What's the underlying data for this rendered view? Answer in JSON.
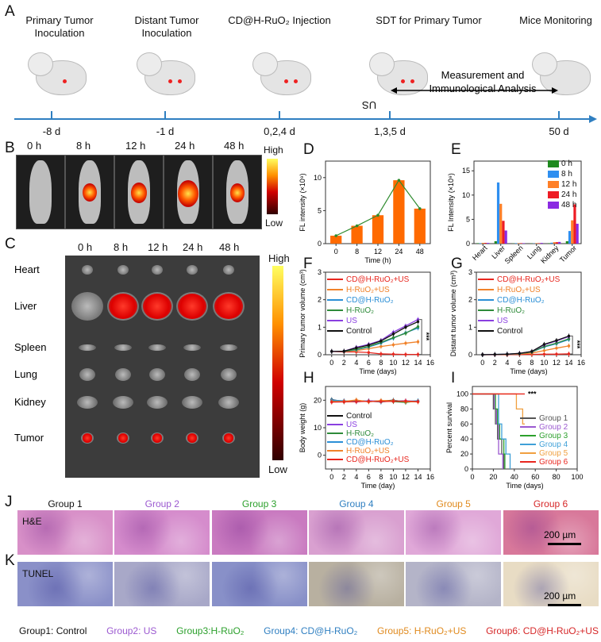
{
  "panels": {
    "A": "A",
    "B": "B",
    "C": "C",
    "D": "D",
    "E": "E",
    "F": "F",
    "G": "G",
    "H": "H",
    "I": "I",
    "J": "J",
    "K": "K"
  },
  "timeline": {
    "steps": [
      {
        "title": "Primary Tumor Inoculation",
        "date": "-8 d"
      },
      {
        "title": "Distant Tumor Inoculation",
        "date": "-1 d"
      },
      {
        "title": "CD@H-RuO₂ Injection",
        "date": "0,2,4 d"
      },
      {
        "title": "SDT for Primary Tumor",
        "date": "1,3,5 d"
      },
      {
        "title": "Mice Monitoring",
        "date": "50 d"
      }
    ],
    "measurement": "Measurement and Immunological Analysis",
    "us_label": "US",
    "colors": {
      "axis": "#2f7fc1",
      "tumor": "#e02020"
    }
  },
  "panel_b": {
    "times": [
      "0 h",
      "8 h",
      "12 h",
      "24 h",
      "48 h"
    ],
    "signal_level": [
      0,
      0.5,
      0.6,
      1.0,
      0.55
    ],
    "scale_high": "High",
    "scale_low": "Low"
  },
  "panel_c": {
    "times": [
      "0 h",
      "8 h",
      "12 h",
      "24 h",
      "48 h"
    ],
    "organs": [
      "Heart",
      "Liver",
      "Spleen",
      "Lung",
      "Kidney",
      "Tumor"
    ],
    "scale_high": "High",
    "scale_low": "Low"
  },
  "histology": {
    "groups": [
      "Group 1",
      "Group 2",
      "Group 3",
      "Group 4",
      "Group 5",
      "Group 6"
    ],
    "group_colors": [
      "#111111",
      "#9b59d0",
      "#2ca02c",
      "#2f7fc1",
      "#e08a1e",
      "#d62728"
    ],
    "he_label": "H&E",
    "tunel_label": "TUNEL",
    "scale_bar": "200 µm",
    "legend": [
      "Group1: Control",
      "Group2: US",
      "Group3:H-RuO₂",
      "Group4: CD@H-RuO₂",
      "Group5: H-RuO₂+US",
      "Group6: CD@H-RuO₂+US"
    ]
  },
  "chart_data": [
    {
      "id": "D",
      "type": "bar",
      "xlabel": "Time (h)",
      "ylabel": "FL intensity (×10⁹)",
      "categories": [
        "0",
        "8",
        "12",
        "24",
        "48"
      ],
      "values": [
        1.2,
        2.7,
        4.3,
        9.6,
        5.3
      ],
      "line_overlay": true,
      "ylim": [
        0,
        12.5
      ],
      "yticks": [
        0,
        5,
        10
      ],
      "colors": {
        "bar": "#ff6a00",
        "line": "#2e8b2e"
      }
    },
    {
      "id": "E",
      "type": "bar",
      "xlabel": "",
      "ylabel": "FL Intensity (×10⁹)",
      "categories": [
        "Heart",
        "Liver",
        "Spleen",
        "Lung",
        "Kidney",
        "Tumor"
      ],
      "ylim": [
        0,
        17
      ],
      "yticks": [
        0,
        5,
        10,
        15
      ],
      "legend": "top-right",
      "series": [
        {
          "name": "0 h",
          "color": "#1f8a1f",
          "values": [
            0.1,
            0.5,
            0.05,
            0.05,
            0.1,
            0.5
          ]
        },
        {
          "name": "8 h",
          "color": "#2f8ff0",
          "values": [
            0.1,
            12.6,
            0.1,
            0.05,
            0.2,
            2.6
          ]
        },
        {
          "name": "12 h",
          "color": "#ff7f27",
          "values": [
            0.15,
            8.2,
            0.1,
            0.1,
            0.3,
            4.8
          ]
        },
        {
          "name": "24 h",
          "color": "#ee1c24",
          "values": [
            0.15,
            4.7,
            0.1,
            0.1,
            0.3,
            8.1
          ]
        },
        {
          "name": "48 h",
          "color": "#8b2be2",
          "values": [
            0.15,
            2.7,
            0.1,
            0.15,
            0.35,
            4.1
          ]
        }
      ]
    },
    {
      "id": "F",
      "type": "line",
      "xlabel": "Time (days)",
      "ylabel": "Primary tumor volume (cm³)",
      "x": [
        0,
        2,
        4,
        6,
        8,
        10,
        12,
        14
      ],
      "xlim": [
        -1,
        16
      ],
      "xticks": [
        0,
        2,
        4,
        6,
        8,
        10,
        12,
        14,
        16
      ],
      "ylim": [
        0,
        3
      ],
      "yticks": [
        0,
        1,
        2,
        3
      ],
      "annotation": "***",
      "series": [
        {
          "name": "CD@H-RuO₂+US",
          "color": "#e8261e",
          "values": [
            0.12,
            0.1,
            0.1,
            0.08,
            0.03,
            0.02,
            0.01,
            0.01
          ]
        },
        {
          "name": "H-RuO₂+US",
          "color": "#f0822a",
          "values": [
            0.12,
            0.12,
            0.15,
            0.22,
            0.3,
            0.36,
            0.42,
            0.47
          ]
        },
        {
          "name": "CD@H-RuO₂",
          "color": "#2b8fd6",
          "values": [
            0.12,
            0.12,
            0.18,
            0.28,
            0.42,
            0.6,
            0.8,
            0.97
          ]
        },
        {
          "name": "H-RuO₂",
          "color": "#2e8b3a",
          "values": [
            0.12,
            0.12,
            0.2,
            0.3,
            0.45,
            0.62,
            0.78,
            1.02
          ]
        },
        {
          "name": "US",
          "color": "#8a3fe0",
          "values": [
            0.12,
            0.13,
            0.27,
            0.38,
            0.52,
            0.82,
            1.05,
            1.28
          ]
        },
        {
          "name": "Control",
          "color": "#111111",
          "values": [
            0.12,
            0.13,
            0.25,
            0.35,
            0.5,
            0.75,
            1.0,
            1.2
          ]
        }
      ]
    },
    {
      "id": "G",
      "type": "line",
      "xlabel": "Time (days)",
      "ylabel": "Distant tumor volume (cm³)",
      "x": [
        0,
        2,
        4,
        6,
        8,
        10,
        12,
        14
      ],
      "xlim": [
        -1,
        16
      ],
      "xticks": [
        0,
        2,
        4,
        6,
        8,
        10,
        12,
        14,
        16
      ],
      "ylim": [
        0,
        3
      ],
      "yticks": [
        0,
        1,
        2,
        3
      ],
      "annotation": "***",
      "series": [
        {
          "name": "CD@H-RuO₂+US",
          "color": "#e8261e",
          "values": [
            0,
            0,
            0,
            0.01,
            0.01,
            0.02,
            0.02,
            0.03
          ]
        },
        {
          "name": "H-RuO₂+US",
          "color": "#f0822a",
          "values": [
            0,
            0.01,
            0.01,
            0.03,
            0.06,
            0.15,
            0.24,
            0.32
          ]
        },
        {
          "name": "CD@H-RuO₂",
          "color": "#2b8fd6",
          "values": [
            0,
            0.01,
            0.02,
            0.04,
            0.1,
            0.28,
            0.4,
            0.55
          ]
        },
        {
          "name": "H-RuO₂",
          "color": "#2e8b3a",
          "values": [
            0,
            0.01,
            0.02,
            0.04,
            0.1,
            0.3,
            0.42,
            0.58
          ]
        },
        {
          "name": "US",
          "color": "#8a3fe0",
          "values": [
            0,
            0.01,
            0.02,
            0.05,
            0.12,
            0.36,
            0.5,
            0.66
          ]
        },
        {
          "name": "Control",
          "color": "#111111",
          "values": [
            0,
            0.01,
            0.02,
            0.05,
            0.12,
            0.38,
            0.52,
            0.68
          ]
        }
      ]
    },
    {
      "id": "H",
      "type": "line",
      "xlabel": "Time (day)",
      "ylabel": "Body weight (g)",
      "x": [
        0,
        2,
        4,
        6,
        8,
        10,
        12,
        14
      ],
      "xlim": [
        -1,
        16
      ],
      "xticks": [
        0,
        2,
        4,
        6,
        8,
        10,
        12,
        14,
        16
      ],
      "ylim": [
        -5,
        25
      ],
      "yticks": [
        0,
        10,
        20
      ],
      "series": [
        {
          "name": "Control",
          "color": "#111111",
          "values": [
            20.2,
            19.5,
            19.8,
            19.6,
            19.7,
            20.0,
            19.4,
            19.6
          ]
        },
        {
          "name": "US",
          "color": "#8a3fe0",
          "values": [
            19.6,
            19.7,
            19.4,
            19.8,
            19.6,
            19.7,
            19.8,
            19.5
          ]
        },
        {
          "name": "H-RuO₂",
          "color": "#2e8b3a",
          "values": [
            19.8,
            19.4,
            19.9,
            19.5,
            19.8,
            19.5,
            19.2,
            19.7
          ]
        },
        {
          "name": "CD@H-RuO₂",
          "color": "#2b8fd6",
          "values": [
            20.0,
            19.8,
            19.6,
            19.7,
            19.3,
            19.9,
            19.6,
            19.8
          ]
        },
        {
          "name": "H-RuO₂+US",
          "color": "#f0822a",
          "values": [
            19.5,
            19.6,
            20.1,
            19.4,
            19.9,
            19.8,
            19.5,
            19.4
          ]
        },
        {
          "name": "CD@H-RuO₂+US",
          "color": "#e8261e",
          "values": [
            19.3,
            19.4,
            19.5,
            19.6,
            19.5,
            19.6,
            19.7,
            19.5
          ]
        }
      ]
    },
    {
      "id": "I",
      "type": "line",
      "step": true,
      "xlabel": "Time (days)",
      "ylabel": "Percent survival",
      "xlim": [
        0,
        100
      ],
      "xticks": [
        0,
        20,
        40,
        60,
        80,
        100
      ],
      "ylim": [
        0,
        110
      ],
      "yticks": [
        0,
        20,
        40,
        60,
        80,
        100
      ],
      "annotation": "***",
      "series": [
        {
          "name": "Group 1",
          "color": "#555555",
          "points": [
            [
              0,
              100
            ],
            [
              20,
              100
            ],
            [
              20,
              80
            ],
            [
              22,
              80
            ],
            [
              22,
              60
            ],
            [
              24,
              60
            ],
            [
              24,
              40
            ],
            [
              28,
              40
            ],
            [
              28,
              20
            ],
            [
              30,
              20
            ],
            [
              30,
              0
            ]
          ]
        },
        {
          "name": "Group 2",
          "color": "#9b59d0",
          "points": [
            [
              0,
              100
            ],
            [
              21,
              100
            ],
            [
              21,
              80
            ],
            [
              23,
              80
            ],
            [
              23,
              60
            ],
            [
              25,
              60
            ],
            [
              25,
              20
            ],
            [
              29,
              20
            ],
            [
              29,
              0
            ]
          ]
        },
        {
          "name": "Group 3",
          "color": "#2ca02c",
          "points": [
            [
              0,
              100
            ],
            [
              22,
              100
            ],
            [
              22,
              80
            ],
            [
              24,
              80
            ],
            [
              24,
              60
            ],
            [
              26,
              60
            ],
            [
              26,
              40
            ],
            [
              30,
              40
            ],
            [
              30,
              20
            ],
            [
              31,
              20
            ],
            [
              31,
              0
            ]
          ]
        },
        {
          "name": "Group 4",
          "color": "#3fa0d8",
          "points": [
            [
              0,
              100
            ],
            [
              25,
              100
            ],
            [
              25,
              60
            ],
            [
              28,
              60
            ],
            [
              28,
              40
            ],
            [
              32,
              40
            ],
            [
              32,
              20
            ],
            [
              36,
              20
            ],
            [
              36,
              0
            ]
          ]
        },
        {
          "name": "Group 5",
          "color": "#f0a040",
          "points": [
            [
              0,
              100
            ],
            [
              42,
              100
            ],
            [
              42,
              80
            ],
            [
              48,
              80
            ],
            [
              48,
              60
            ],
            [
              50,
              60
            ]
          ]
        },
        {
          "name": "Group 6",
          "color": "#e8261e",
          "points": [
            [
              0,
              100
            ],
            [
              50,
              100
            ]
          ]
        }
      ]
    }
  ]
}
